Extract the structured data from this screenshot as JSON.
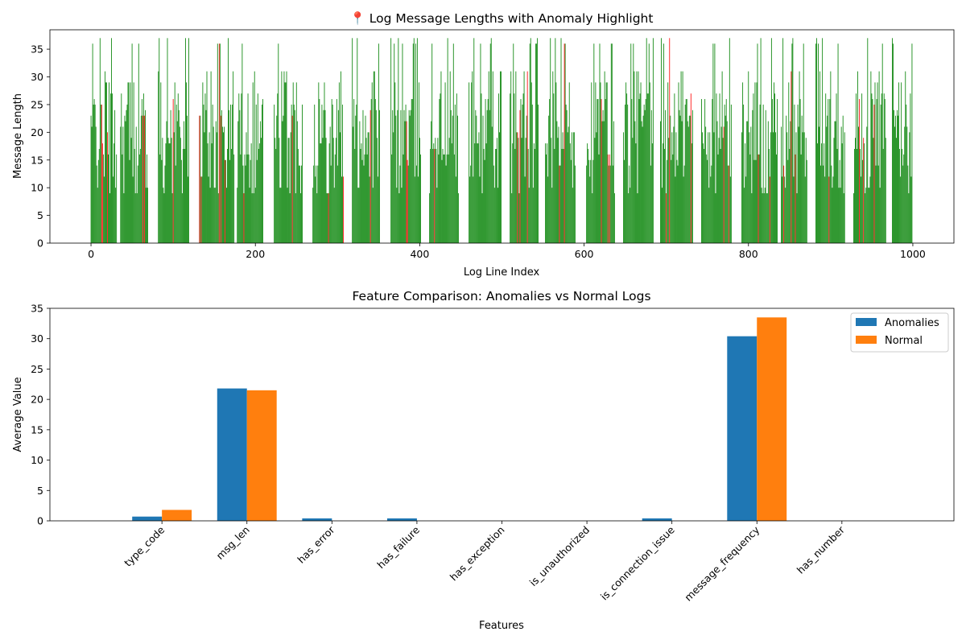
{
  "chart_data": [
    {
      "type": "bar",
      "title": "📍 Log Message Lengths with Anomaly Highlight",
      "xlabel": "Log Line Index",
      "ylabel": "Message Length",
      "xlim": [
        -50,
        1050
      ],
      "ylim": [
        0,
        38.5
      ],
      "xticks": [
        0,
        200,
        400,
        600,
        800,
        1000
      ],
      "yticks": [
        0,
        5,
        10,
        15,
        20,
        25,
        30,
        35
      ],
      "n_points": 1000,
      "colors": {
        "normal": "#008000",
        "anomaly": "#ff0000"
      },
      "gaps": [
        [
          32,
          36
        ],
        [
          70,
          82
        ],
        [
          120,
          132
        ],
        [
          175,
          178
        ],
        [
          210,
          223
        ],
        [
          258,
          270
        ],
        [
          308,
          318
        ],
        [
          352,
          365
        ],
        [
          402,
          412
        ],
        [
          448,
          460
        ],
        [
          500,
          510
        ],
        [
          545,
          553
        ],
        [
          590,
          603
        ],
        [
          638,
          648
        ],
        [
          685,
          693
        ],
        [
          733,
          743
        ],
        [
          780,
          792
        ],
        [
          836,
          840
        ],
        [
          872,
          882
        ],
        [
          918,
          928
        ],
        [
          968,
          975
        ]
      ],
      "anomaly_indices": [
        13,
        14,
        20,
        63,
        65,
        71,
        100,
        132,
        134,
        156,
        158,
        163,
        186,
        245,
        258,
        289,
        307,
        340,
        384,
        385,
        418,
        519,
        522,
        531,
        570,
        576,
        621,
        629,
        631,
        700,
        704,
        730,
        770,
        776,
        782,
        791,
        812,
        826,
        837,
        843,
        852,
        857,
        898,
        918,
        935,
        940,
        953
      ],
      "value_levels": [
        9,
        10,
        12,
        14,
        15,
        16,
        17,
        18,
        19,
        20,
        21,
        22,
        23,
        24,
        25,
        26,
        27,
        29,
        31,
        36,
        37
      ]
    },
    {
      "type": "bar",
      "title": "Feature Comparison: Anomalies vs Normal Logs",
      "xlabel": "Features",
      "ylabel": "Average Value",
      "ylim": [
        0,
        35
      ],
      "yticks": [
        0,
        5,
        10,
        15,
        20,
        25,
        30,
        35
      ],
      "legend_position": "top-right",
      "categories": [
        "type_code",
        "msg_len",
        "has_error",
        "has_failure",
        "has_exception",
        "is_unauthorized",
        "is_connection_issue",
        "message_frequency",
        "has_number"
      ],
      "series": [
        {
          "name": "Anomalies",
          "color": "#1f77b4",
          "values": [
            0.7,
            21.8,
            0.4,
            0.4,
            0.0,
            0.0,
            0.4,
            30.4,
            0.0
          ]
        },
        {
          "name": "Normal",
          "color": "#ff7f0e",
          "values": [
            1.8,
            21.5,
            0.0,
            0.0,
            0.0,
            0.0,
            0.0,
            33.5,
            0.0
          ]
        }
      ]
    }
  ]
}
